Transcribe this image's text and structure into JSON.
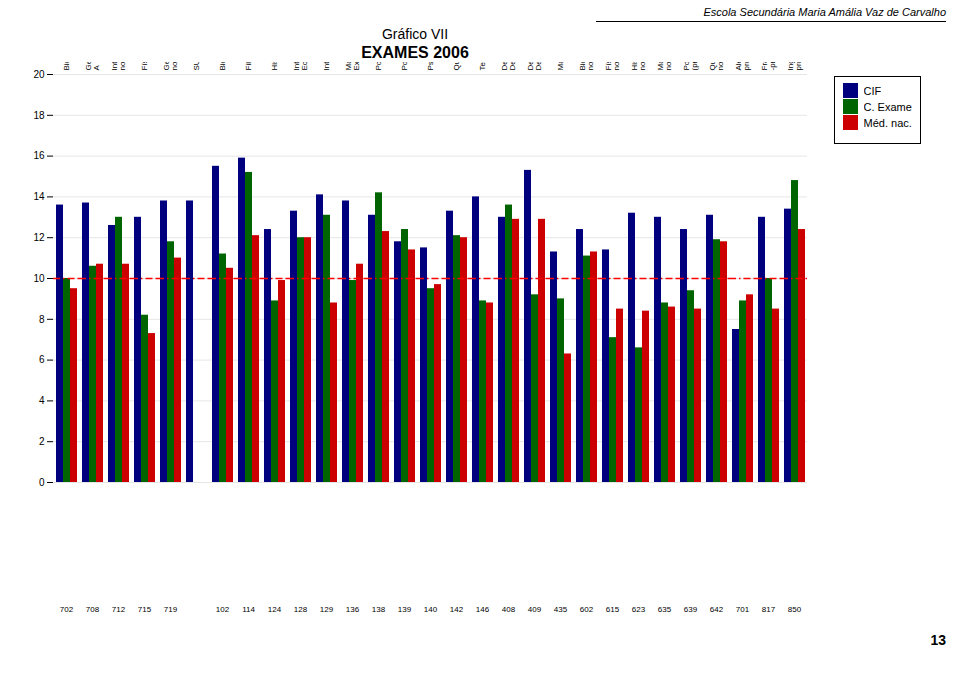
{
  "chart_data": {
    "type": "bar",
    "title": "Gráfico VII",
    "subtitle": "EXAMES 2006",
    "annotations": [
      "Escola Secundária Maria Amália Vaz de Carvalho",
      "13"
    ],
    "categories": [
      "Biologia e Geologia",
      "Geometria Descritiva\nA",
      "Intro.Econ. (prog.\nnovo)/Economia A",
      "Física e Química A",
      "Geografia (prog.\nnovo)/Geografia A",
      "SUB-TOTAL 11º",
      "Biologia",
      "Filosofia",
      "História da Arte",
      "Intro. ao Desenv.\nEconómico Social",
      "Introdução ao Direito",
      "Materiais e Técnicas\nExpr. Plástica",
      "Português A",
      "Português B",
      "Psicologia",
      "Química",
      "Teoria do Design",
      "Desenho e Geometria\nDescritiva A",
      "Desenho e Geometria\nDescritiva B",
      "Matemática",
      "Biologia (programa\nnovo)",
      "Física (programa\nnovo)",
      "História (programa\nnovo)",
      "Matemática (programa\nnovo)",
      "Português B\n(programa novo)",
      "Química (programa\nnovo)",
      "Alemão (iniciação -\nprograma novo)",
      "Francês (continuação\n-prog. novo)",
      "Inglês (continuação -\nprograma novo)"
    ],
    "codes": [
      "702",
      "708",
      "712",
      "715",
      "719",
      null,
      "102",
      "114",
      "124",
      "128",
      "129",
      "136",
      "138",
      "139",
      "140",
      "142",
      "146",
      "408",
      "409",
      "435",
      "602",
      "615",
      "623",
      "635",
      "639",
      "642",
      "701",
      "817",
      "850"
    ],
    "series": [
      {
        "name": "CIF",
        "color": "#00007f",
        "values": [
          13.6,
          13.7,
          12.6,
          13.0,
          13.8,
          13.8,
          15.5,
          15.9,
          12.4,
          13.3,
          14.1,
          13.8,
          13.1,
          11.8,
          11.5,
          13.3,
          14.0,
          13.0,
          15.3,
          11.3,
          12.4,
          11.4,
          13.2,
          13.0,
          12.4,
          13.1,
          7.5,
          13.0,
          13.4
        ]
      },
      {
        "name": "C. Exame",
        "color": "#006400",
        "values": [
          10.0,
          10.6,
          13.0,
          8.2,
          11.8,
          0.0,
          11.2,
          15.2,
          8.9,
          12.0,
          13.1,
          9.9,
          14.2,
          12.4,
          9.5,
          12.1,
          8.9,
          13.6,
          9.2,
          9.0,
          11.1,
          7.1,
          6.6,
          8.8,
          9.4,
          11.9,
          8.9,
          10.0,
          14.8
        ]
      },
      {
        "name": "Méd. nac.",
        "color": "#cc0000",
        "values": [
          9.5,
          10.7,
          10.7,
          7.3,
          11.0,
          0.0,
          10.5,
          12.1,
          9.9,
          12.0,
          8.8,
          10.7,
          12.3,
          11.4,
          9.7,
          12.0,
          8.8,
          12.9,
          12.9,
          6.3,
          11.3,
          8.5,
          8.4,
          8.6,
          8.5,
          11.8,
          9.2,
          8.5,
          12.4
        ]
      }
    ],
    "reference_lines": [
      {
        "value": 10.0,
        "color": "red",
        "line_style": "dashdot"
      }
    ],
    "ylim": [
      0,
      20
    ],
    "yticks": [
      0,
      2,
      4,
      6,
      8,
      10,
      12,
      14,
      16,
      18,
      20
    ],
    "grid": true,
    "legend": "right"
  }
}
